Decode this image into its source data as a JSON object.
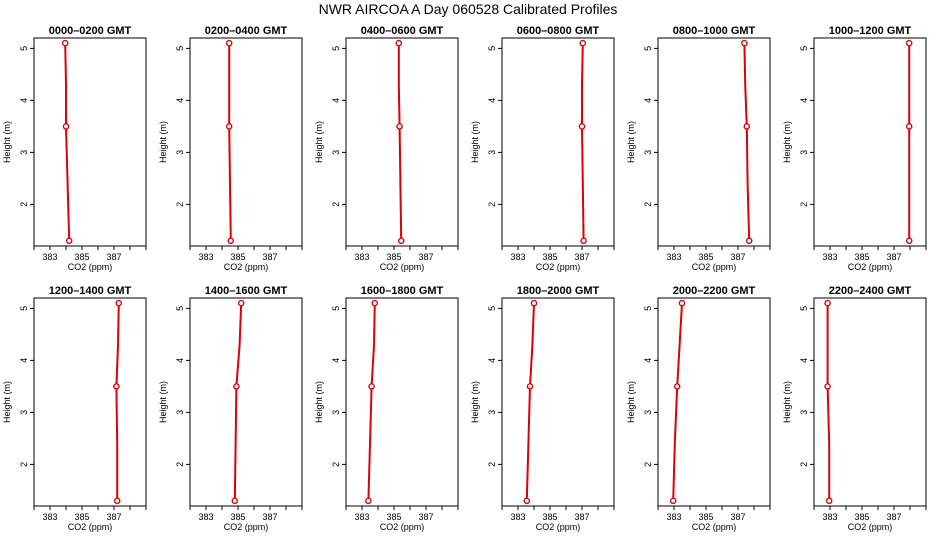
{
  "title": "NWR AIRCOA A  Day 060528  Calibrated Profiles",
  "colors": {
    "profile": "#dd0000",
    "axis": "#000000",
    "background": "#ffffff"
  },
  "chart_data": [
    {
      "type": "line",
      "title": "0000–0200 GMT",
      "xlabel": "CO2 (ppm)",
      "ylabel": "Height (m)",
      "xlim": [
        382,
        389
      ],
      "ylim": [
        1.2,
        5.2
      ],
      "xticks": [
        383,
        385,
        387
      ],
      "yticks": [
        2,
        3,
        4,
        5
      ],
      "grid": false,
      "series": [
        {
          "x": [
            384.2,
            384.1,
            384.0,
            384.0,
            383.95
          ],
          "y": [
            1.3,
            2.4,
            3.5,
            4.3,
            5.1
          ]
        }
      ]
    },
    {
      "type": "line",
      "title": "0200–0400 GMT",
      "xlabel": "CO2 (ppm)",
      "ylabel": "Height (m)",
      "xlim": [
        382,
        389
      ],
      "ylim": [
        1.2,
        5.2
      ],
      "xticks": [
        383,
        385,
        387
      ],
      "yticks": [
        2,
        3,
        4,
        5
      ],
      "grid": false,
      "series": [
        {
          "x": [
            384.55,
            384.5,
            384.45,
            384.45,
            384.45
          ],
          "y": [
            1.3,
            2.4,
            3.5,
            4.3,
            5.1
          ]
        }
      ]
    },
    {
      "type": "line",
      "title": "0400–0600 GMT",
      "xlabel": "CO2 (ppm)",
      "ylabel": "Height (m)",
      "xlim": [
        382,
        389
      ],
      "ylim": [
        1.2,
        5.2
      ],
      "xticks": [
        383,
        385,
        387
      ],
      "yticks": [
        2,
        3,
        4,
        5
      ],
      "grid": false,
      "series": [
        {
          "x": [
            385.45,
            385.4,
            385.35,
            385.3,
            385.3
          ],
          "y": [
            1.3,
            2.4,
            3.5,
            4.3,
            5.1
          ]
        }
      ]
    },
    {
      "type": "line",
      "title": "0600–0800 GMT",
      "xlabel": "CO2 (ppm)",
      "ylabel": "Height (m)",
      "xlim": [
        382,
        389
      ],
      "ylim": [
        1.2,
        5.2
      ],
      "xticks": [
        383,
        385,
        387
      ],
      "yticks": [
        2,
        3,
        4,
        5
      ],
      "grid": false,
      "series": [
        {
          "x": [
            387.1,
            387.05,
            387.0,
            387.0,
            387.05
          ],
          "y": [
            1.3,
            2.4,
            3.5,
            4.3,
            5.1
          ]
        }
      ]
    },
    {
      "type": "line",
      "title": "0800–1000 GMT",
      "xlabel": "CO2 (ppm)",
      "ylabel": "Height (m)",
      "xlim": [
        382,
        389
      ],
      "ylim": [
        1.2,
        5.2
      ],
      "xticks": [
        383,
        385,
        387
      ],
      "yticks": [
        2,
        3,
        4,
        5
      ],
      "grid": false,
      "series": [
        {
          "x": [
            387.7,
            387.6,
            387.55,
            387.45,
            387.4
          ],
          "y": [
            1.3,
            2.4,
            3.5,
            4.3,
            5.1
          ]
        }
      ]
    },
    {
      "type": "line",
      "title": "1000–1200 GMT",
      "xlabel": "CO2 (ppm)",
      "ylabel": "Height (m)",
      "xlim": [
        382,
        389
      ],
      "ylim": [
        1.2,
        5.2
      ],
      "xticks": [
        383,
        385,
        387
      ],
      "yticks": [
        2,
        3,
        4,
        5
      ],
      "grid": false,
      "series": [
        {
          "x": [
            387.95,
            387.95,
            387.95,
            387.95,
            387.95
          ],
          "y": [
            1.3,
            2.4,
            3.5,
            4.3,
            5.1
          ]
        }
      ]
    },
    {
      "type": "line",
      "title": "1200–1400 GMT",
      "xlabel": "CO2 (ppm)",
      "ylabel": "Height (m)",
      "xlim": [
        382,
        389
      ],
      "ylim": [
        1.2,
        5.2
      ],
      "xticks": [
        383,
        385,
        387
      ],
      "yticks": [
        2,
        3,
        4,
        5
      ],
      "grid": false,
      "series": [
        {
          "x": [
            387.2,
            387.2,
            387.15,
            387.25,
            387.3
          ],
          "y": [
            1.3,
            2.4,
            3.5,
            4.3,
            5.1
          ]
        }
      ]
    },
    {
      "type": "line",
      "title": "1400–1600 GMT",
      "xlabel": "CO2 (ppm)",
      "ylabel": "Height (m)",
      "xlim": [
        382,
        389
      ],
      "ylim": [
        1.2,
        5.2
      ],
      "xticks": [
        383,
        385,
        387
      ],
      "yticks": [
        2,
        3,
        4,
        5
      ],
      "grid": false,
      "series": [
        {
          "x": [
            384.8,
            384.85,
            384.9,
            385.1,
            385.2
          ],
          "y": [
            1.3,
            2.4,
            3.5,
            4.3,
            5.1
          ]
        }
      ]
    },
    {
      "type": "line",
      "title": "1600–1800 GMT",
      "xlabel": "CO2 (ppm)",
      "ylabel": "Height (m)",
      "xlim": [
        382,
        389
      ],
      "ylim": [
        1.2,
        5.2
      ],
      "xticks": [
        383,
        385,
        387
      ],
      "yticks": [
        2,
        3,
        4,
        5
      ],
      "grid": false,
      "series": [
        {
          "x": [
            383.4,
            383.5,
            383.6,
            383.75,
            383.8
          ],
          "y": [
            1.3,
            2.4,
            3.5,
            4.3,
            5.1
          ]
        }
      ]
    },
    {
      "type": "line",
      "title": "1800–2000 GMT",
      "xlabel": "CO2 (ppm)",
      "ylabel": "Height (m)",
      "xlim": [
        382,
        389
      ],
      "ylim": [
        1.2,
        5.2
      ],
      "xticks": [
        383,
        385,
        387
      ],
      "yticks": [
        2,
        3,
        4,
        5
      ],
      "grid": false,
      "series": [
        {
          "x": [
            383.55,
            383.65,
            383.75,
            383.9,
            384.0
          ],
          "y": [
            1.3,
            2.4,
            3.5,
            4.3,
            5.1
          ]
        }
      ]
    },
    {
      "type": "line",
      "title": "2000–2200 GMT",
      "xlabel": "CO2 (ppm)",
      "ylabel": "Height (m)",
      "xlim": [
        382,
        389
      ],
      "ylim": [
        1.2,
        5.2
      ],
      "xticks": [
        383,
        385,
        387
      ],
      "yticks": [
        2,
        3,
        4,
        5
      ],
      "grid": false,
      "series": [
        {
          "x": [
            382.95,
            383.05,
            383.2,
            383.35,
            383.5
          ],
          "y": [
            1.3,
            2.4,
            3.5,
            4.3,
            5.1
          ]
        }
      ]
    },
    {
      "type": "line",
      "title": "2200–2400 GMT",
      "xlabel": "CO2 (ppm)",
      "ylabel": "Height (m)",
      "xlim": [
        382,
        389
      ],
      "ylim": [
        1.2,
        5.2
      ],
      "xticks": [
        383,
        385,
        387
      ],
      "yticks": [
        2,
        3,
        4,
        5
      ],
      "grid": false,
      "series": [
        {
          "x": [
            382.95,
            382.95,
            382.85,
            382.85,
            382.85
          ],
          "y": [
            1.3,
            2.4,
            3.5,
            4.3,
            5.1
          ]
        }
      ]
    }
  ]
}
